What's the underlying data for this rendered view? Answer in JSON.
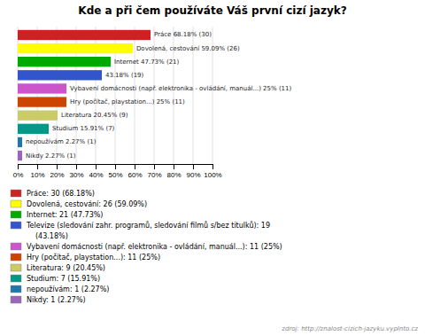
{
  "chart_data": {
    "type": "bar",
    "orientation": "horizontal",
    "title": "Kde a při čem používáte Váš první cizí jazyk?",
    "categories": [
      "Práce 68.18% (30)",
      "Dovolená, cestování 59.09% (26)",
      "Internet 47.73% (21)",
      "43.18% (19)",
      "Vybavení domácnosti (např. elektronika - ovládání, manuál...) 25% (11)",
      "Hry (počítač, playstation...) 25% (11)",
      "Literatura 20.45% (9)",
      "Studium 15.91% (7)",
      "nepoužívám 2.27% (1)",
      "Nikdy 2.27% (1)"
    ],
    "values": [
      68.18,
      59.09,
      47.73,
      43.18,
      25.0,
      25.0,
      20.45,
      15.91,
      2.27,
      2.27
    ],
    "colors": [
      "#cc2222",
      "#ffff00",
      "#00aa00",
      "#3355cc",
      "#cc55cc",
      "#cc4400",
      "#cccc66",
      "#009988",
      "#2277aa",
      "#9966bb"
    ],
    "legend_labels": [
      "Práce: 30 (68.18%)",
      "Dovolená, cestování: 26 (59.09%)",
      "Internet: 21 (47.73%)",
      "Televize (sledování zahr. programů, sledování filmů s/bez titulků): 19\n(43.18%)",
      "Vybavení domácnosti (např. elektronika - ovládání, manuál...): 11 (25%)",
      "Hry (počítač, playstation...): 11 (25%)",
      "Literatura: 9 (20.45%)",
      "Studium: 7 (15.91%)",
      "nepoužívám: 1 (2.27%)",
      "Nikdy: 1 (2.27%)"
    ],
    "legend": "bottom",
    "source": "zdroj: http://znalost-cizich-jazyku.vyplnto.cz",
    "xlim": [
      0,
      100
    ],
    "xticks": [
      {
        "value": 0,
        "label": "0%"
      },
      {
        "value": 10,
        "label": "10%"
      },
      {
        "value": 20,
        "label": "20%"
      },
      {
        "value": 30,
        "label": "30%"
      },
      {
        "value": 40,
        "label": "40%"
      },
      {
        "value": 50,
        "label": "50%"
      },
      {
        "value": 60,
        "label": "60%"
      },
      {
        "value": 70,
        "label": "70%"
      },
      {
        "value": 80,
        "label": "80%"
      },
      {
        "value": 90,
        "label": "90%"
      },
      {
        "value": 100,
        "label": "100%"
      }
    ],
    "grid": true
  }
}
